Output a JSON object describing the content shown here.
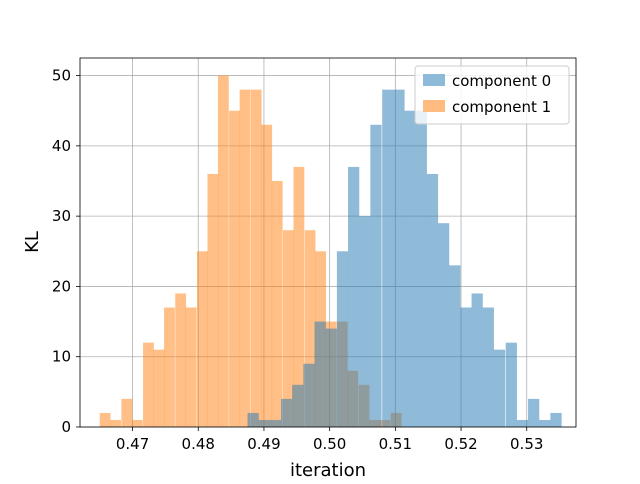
{
  "chart_data": {
    "type": "bar",
    "subtype": "histogram",
    "title": "",
    "xlabel": "iteration",
    "ylabel": "KL",
    "xlim": [
      0.462,
      0.5375
    ],
    "ylim": [
      0,
      52.5
    ],
    "xticks": [
      "0.47",
      "0.48",
      "0.49",
      "0.50",
      "0.51",
      "0.52",
      "0.53"
    ],
    "yticks": [
      "0",
      "10",
      "20",
      "30",
      "40",
      "50"
    ],
    "grid": true,
    "legend_position": "top-right",
    "series": [
      {
        "name": "component 1",
        "color": "#ffbb80",
        "bin_width": 0.00164,
        "bins": [
          [
            0.465,
            2
          ],
          [
            0.4666,
            1
          ],
          [
            0.4683,
            4
          ],
          [
            0.4699,
            1
          ],
          [
            0.4716,
            12
          ],
          [
            0.4732,
            11
          ],
          [
            0.4748,
            17
          ],
          [
            0.4765,
            19
          ],
          [
            0.4781,
            17
          ],
          [
            0.4798,
            25
          ],
          [
            0.4814,
            36
          ],
          [
            0.483,
            50
          ],
          [
            0.4847,
            45
          ],
          [
            0.4863,
            48
          ],
          [
            0.488,
            48
          ],
          [
            0.4896,
            43
          ],
          [
            0.4912,
            35
          ],
          [
            0.4929,
            28
          ],
          [
            0.4945,
            37
          ],
          [
            0.4962,
            28
          ],
          [
            0.4978,
            25
          ],
          [
            0.4994,
            15
          ],
          [
            0.5011,
            15
          ],
          [
            0.5027,
            8
          ],
          [
            0.5044,
            6
          ],
          [
            0.506,
            1
          ],
          [
            0.5076,
            1
          ],
          [
            0.5093,
            2
          ]
        ]
      },
      {
        "name": "component 0",
        "color": "#8ebad9",
        "bin_width": 0.00171,
        "bins": [
          [
            0.4875,
            2
          ],
          [
            0.4892,
            1
          ],
          [
            0.4909,
            1
          ],
          [
            0.4926,
            4
          ],
          [
            0.4943,
            6
          ],
          [
            0.496,
            9
          ],
          [
            0.4977,
            15
          ],
          [
            0.4994,
            14
          ],
          [
            0.5011,
            25
          ],
          [
            0.5028,
            37
          ],
          [
            0.5045,
            30
          ],
          [
            0.5062,
            43
          ],
          [
            0.508,
            48
          ],
          [
            0.5097,
            48
          ],
          [
            0.5114,
            45
          ],
          [
            0.5131,
            45
          ],
          [
            0.5148,
            36
          ],
          [
            0.5165,
            29
          ],
          [
            0.5182,
            23
          ],
          [
            0.5199,
            17
          ],
          [
            0.5216,
            19
          ],
          [
            0.5233,
            17
          ],
          [
            0.525,
            11
          ],
          [
            0.5268,
            12
          ],
          [
            0.5285,
            1
          ],
          [
            0.5302,
            4
          ],
          [
            0.5319,
            1
          ],
          [
            0.5336,
            2
          ]
        ]
      }
    ],
    "legend": [
      {
        "name": "component 0",
        "color": "#8ebad9"
      },
      {
        "name": "component 1",
        "color": "#ffbb80"
      }
    ]
  }
}
